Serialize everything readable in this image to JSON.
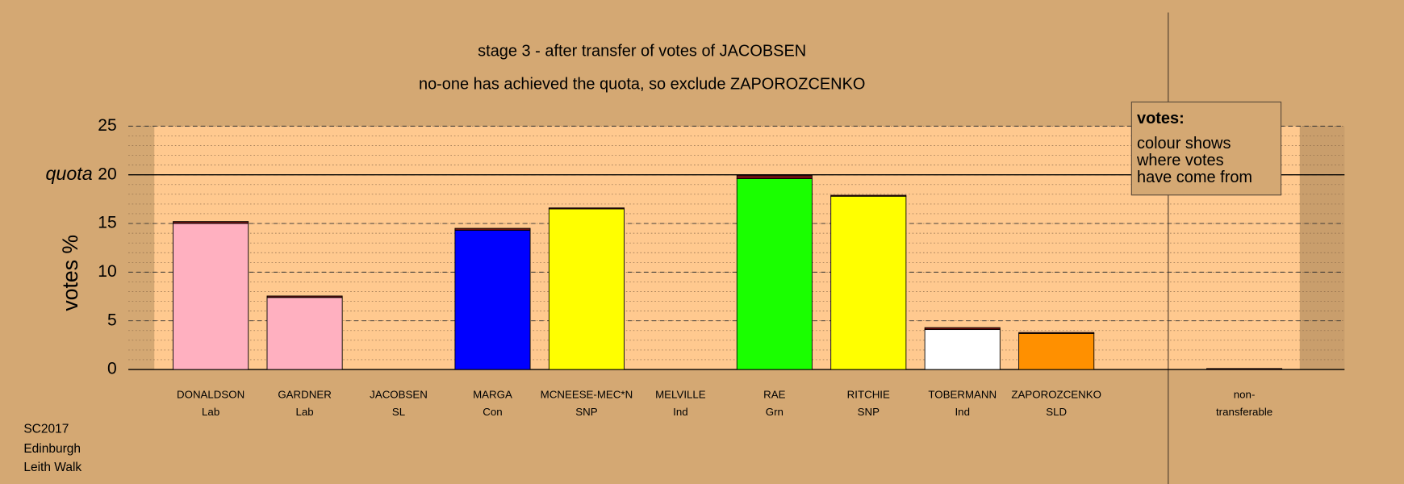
{
  "chart_data": {
    "type": "bar",
    "title": "stage 3 - after transfer of votes of JACOBSEN",
    "subtitle": "no-one has achieved the quota, so exclude ZAPOROZCENKO",
    "y_label": "votes %",
    "categories": [
      "DONALDSON",
      "GARDNER",
      "JACOBSEN",
      "MARGA",
      "MCNEESE-MEC*N",
      "MELVILLE",
      "RAE",
      "RITCHIE",
      "TOBERMANN",
      "ZAPOROZCENKO",
      "non-"
    ],
    "sublabels": [
      "Lab",
      "Lab",
      "SL",
      "Con",
      "SNP",
      "Ind",
      "Grn",
      "SNP",
      "Ind",
      "SLD",
      "transferable"
    ],
    "series": [
      {
        "colors": [
          "#ffb0c0",
          "#ffb0c0",
          "#8b1a1a",
          "#0000ff",
          "#ffff00",
          "#808080",
          "#1aff00",
          "#ffff00",
          "#ffffff",
          "#ff9000",
          "#5a1010"
        ],
        "values": [
          15.0,
          7.4,
          0,
          14.3,
          16.5,
          0,
          19.6,
          17.8,
          4.1,
          3.7,
          0
        ]
      },
      {
        "color": "#6b1010",
        "values": [
          0.2,
          0.15,
          0,
          0.2,
          0.1,
          0,
          0.35,
          0.1,
          0.2,
          0.1,
          0.1
        ]
      }
    ],
    "ylim": [
      0,
      25
    ],
    "yticks": [
      0,
      5,
      10,
      15,
      20,
      25
    ],
    "minor_grid_step": 1,
    "grid": true,
    "quota": {
      "label": "quota",
      "value": 20
    },
    "legend": {
      "title": "votes:",
      "lines": [
        "colour shows",
        "where votes",
        "have come from"
      ]
    },
    "footnote": [
      "SC2017",
      "Edinburgh",
      "Leith Walk"
    ]
  }
}
